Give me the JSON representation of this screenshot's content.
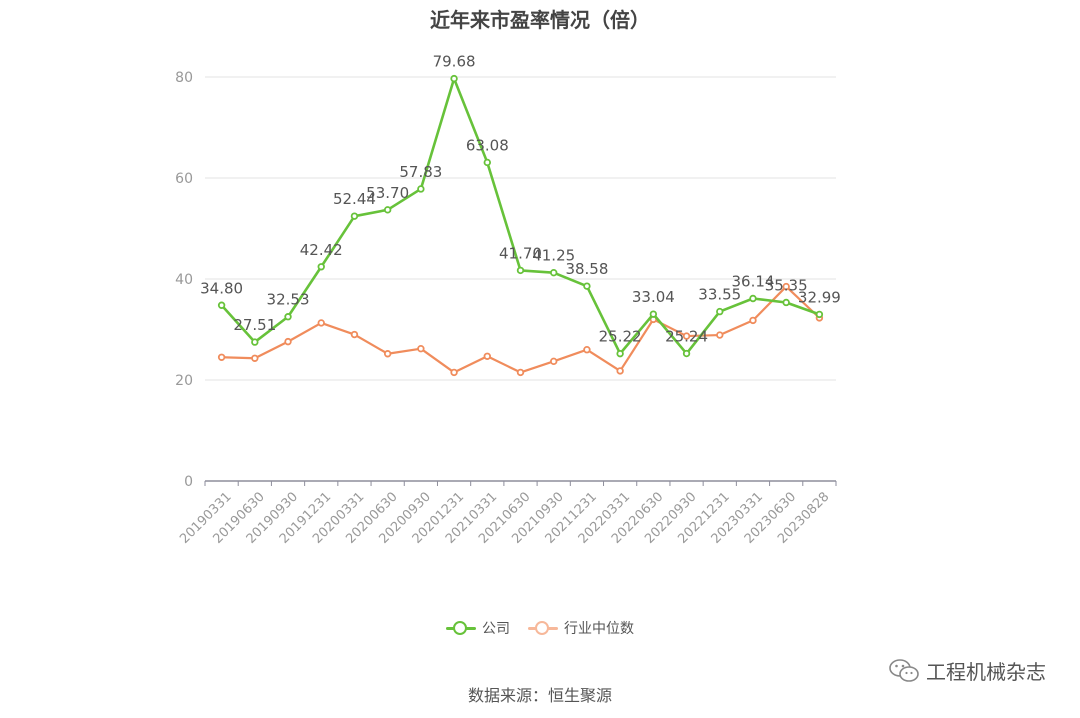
{
  "chart_data": {
    "type": "line",
    "title": "近年来市盈率情况（倍）",
    "categories": [
      "20190331",
      "20190630",
      "20190930",
      "20191231",
      "20200331",
      "20200630",
      "20200930",
      "20201231",
      "20210331",
      "20210630",
      "20210930",
      "20211231",
      "20220331",
      "20220630",
      "20220930",
      "20221231",
      "20230331",
      "20230630",
      "20230828"
    ],
    "series": [
      {
        "name": "公司",
        "color": "#67c23a",
        "values": [
          34.8,
          27.51,
          32.53,
          42.42,
          52.44,
          53.7,
          57.83,
          79.68,
          63.08,
          41.7,
          41.25,
          38.58,
          25.22,
          33.04,
          25.24,
          33.55,
          36.14,
          35.35,
          32.99
        ],
        "labels": [
          "34.80",
          "27.51",
          "32.53",
          "42.42",
          "52.44",
          "53.70",
          "57.83",
          "79.68",
          "63.08",
          "41.70",
          "41.25",
          "38.58",
          "25.22",
          "33.04",
          "25.24",
          "33.55",
          "36.14",
          "35.35",
          "32.99"
        ]
      },
      {
        "name": "行业中位数",
        "color": "#f08c5c",
        "values": [
          24.5,
          24.3,
          27.6,
          31.3,
          29.0,
          25.2,
          26.2,
          21.5,
          24.7,
          21.5,
          23.7,
          26.0,
          21.8,
          32.0,
          28.7,
          28.9,
          31.8,
          38.5,
          32.3
        ]
      }
    ],
    "ylim": [
      0,
      80
    ],
    "yticks": [
      0,
      20,
      40,
      60,
      80
    ],
    "xlabel": "",
    "ylabel": "",
    "grid": true,
    "legend_position": "bottom"
  },
  "source_text": "数据来源：恒生聚源",
  "watermark": {
    "text": "工程机械杂志",
    "icon": "wechat-icon"
  }
}
